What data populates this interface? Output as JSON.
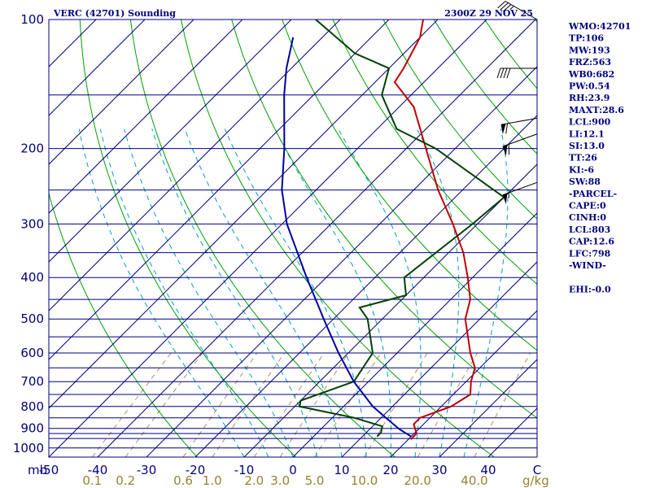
{
  "chart_data": {
    "type": "skew-t",
    "title": "VERC (42701) Sounding",
    "timestamp": "2300Z 29 NOV 25",
    "x_axis": {
      "unit_label": "mb",
      "temperature_ticks": [
        "-50",
        "-40",
        "-30",
        "-20",
        "-10",
        "0",
        "10",
        "20",
        "30",
        "40",
        "C"
      ],
      "temperature_range_c": [
        -50,
        50
      ],
      "mixing_ratio_unit": "g/kg",
      "mixing_ratio_ticks": [
        "0.1",
        "0.2",
        "0.6",
        "1.0",
        "2.0",
        "3.0",
        "5.0",
        "10.0",
        "20.0",
        "40.0"
      ]
    },
    "y_axis": {
      "scale": "log-pressure",
      "range_mb": [
        1050,
        100
      ],
      "tick_labels": [
        "100",
        "200",
        "300",
        "400",
        "500",
        "600",
        "700",
        "800",
        "900",
        "1000"
      ]
    },
    "isobars_mb": [
      100,
      150,
      200,
      250,
      300,
      350,
      400,
      450,
      500,
      550,
      600,
      650,
      700,
      750,
      800,
      850,
      900,
      925,
      950,
      1000
    ],
    "dry_adiabats_theta_k": [
      250,
      270,
      290,
      310,
      330,
      350,
      370,
      390,
      410,
      430,
      450,
      470,
      490,
      510,
      530,
      550
    ],
    "moist_adiabats_start_c": [
      -10,
      -5,
      0,
      5,
      10,
      15,
      20,
      25,
      30,
      35
    ],
    "mixing_ratio_lines_gkg": [
      0.1,
      0.2,
      0.6,
      1.0,
      2.0,
      3.0,
      5.0,
      10.0,
      20.0,
      40.0
    ],
    "series": [
      {
        "name": "Temperature",
        "color": "#c00000",
        "points": [
          {
            "p": 955,
            "t": 20.5
          },
          {
            "p": 925,
            "t": 20.5
          },
          {
            "p": 880,
            "t": 18
          },
          {
            "p": 850,
            "t": 18
          },
          {
            "p": 800,
            "t": 22
          },
          {
            "p": 750,
            "t": 23.5
          },
          {
            "p": 700,
            "t": 21
          },
          {
            "p": 650,
            "t": 19
          },
          {
            "p": 600,
            "t": 15
          },
          {
            "p": 500,
            "t": 7
          },
          {
            "p": 450,
            "t": 4
          },
          {
            "p": 400,
            "t": -1
          },
          {
            "p": 350,
            "t": -7
          },
          {
            "p": 300,
            "t": -15
          },
          {
            "p": 250,
            "t": -25
          },
          {
            "p": 200,
            "t": -36
          },
          {
            "p": 160,
            "t": -47
          },
          {
            "p": 140,
            "t": -56
          },
          {
            "p": 130,
            "t": -57
          },
          {
            "p": 110,
            "t": -60
          },
          {
            "p": 100,
            "t": -63
          }
        ]
      },
      {
        "name": "Dewpoint",
        "color": "#004000",
        "points": [
          {
            "p": 940,
            "t": 13
          },
          {
            "p": 920,
            "t": 13
          },
          {
            "p": 890,
            "t": 12
          },
          {
            "p": 850,
            "t": 4.5
          },
          {
            "p": 800,
            "t": -9
          },
          {
            "p": 775,
            "t": -10
          },
          {
            "p": 700,
            "t": -3
          },
          {
            "p": 600,
            "t": -5
          },
          {
            "p": 500,
            "t": -13
          },
          {
            "p": 470,
            "t": -17
          },
          {
            "p": 440,
            "t": -10
          },
          {
            "p": 400,
            "t": -14
          },
          {
            "p": 300,
            "t": -11
          },
          {
            "p": 260,
            "t": -10
          },
          {
            "p": 200,
            "t": -34
          },
          {
            "p": 180,
            "t": -46
          },
          {
            "p": 150,
            "t": -56
          },
          {
            "p": 130,
            "t": -60
          },
          {
            "p": 120,
            "t": -70
          },
          {
            "p": 100,
            "t": -85
          }
        ]
      },
      {
        "name": "Parcel",
        "color": "#0000a0",
        "points": [
          {
            "p": 940,
            "t": 20
          },
          {
            "p": 903,
            "t": 16
          },
          {
            "p": 850,
            "t": 11
          },
          {
            "p": 800,
            "t": 6
          },
          {
            "p": 700,
            "t": -3
          },
          {
            "p": 600,
            "t": -12
          },
          {
            "p": 500,
            "t": -22
          },
          {
            "p": 400,
            "t": -34
          },
          {
            "p": 300,
            "t": -49
          },
          {
            "p": 250,
            "t": -57
          },
          {
            "p": 200,
            "t": -65
          },
          {
            "p": 150,
            "t": -76
          },
          {
            "p": 130,
            "t": -81
          },
          {
            "p": 110,
            "t": -86
          }
        ]
      }
    ],
    "wind_barbs": [
      {
        "p": 100,
        "direction_deg": 300,
        "speed_kt": 35
      },
      {
        "p": 130,
        "direction_deg": 270,
        "speed_kt": 40
      },
      {
        "p": 170,
        "direction_deg": 260,
        "speed_kt": 60
      },
      {
        "p": 185,
        "direction_deg": 250,
        "speed_kt": 60
      },
      {
        "p": 240,
        "direction_deg": 250,
        "speed_kt": 55
      }
    ]
  },
  "indices": [
    "WMO:42701",
    "TP:106",
    "MW:193",
    "FRZ:563",
    "WB0:682",
    "PW:0.54",
    "RH:23.9",
    "MAXT:28.6",
    "LCL:900",
    "LI:12.1",
    "SI:13.0",
    "TT:26",
    "KI:-6",
    "SW:88",
    "-PARCEL-",
    "CAPE:0",
    "CINH:0",
    "LCL:803",
    "CAP:12.6",
    "LFC:798",
    "-WIND-",
    "",
    "EHI:-0.0"
  ],
  "colors": {
    "isobar": "#000080",
    "dry_adiabat": "#00a000",
    "moist_adiabat": "#00a0c0",
    "mixing_ratio": "#b09060",
    "isotherm": "#000080",
    "frame": "#000080",
    "label_dark": "#000080",
    "label_mixing": "#9a8030"
  }
}
